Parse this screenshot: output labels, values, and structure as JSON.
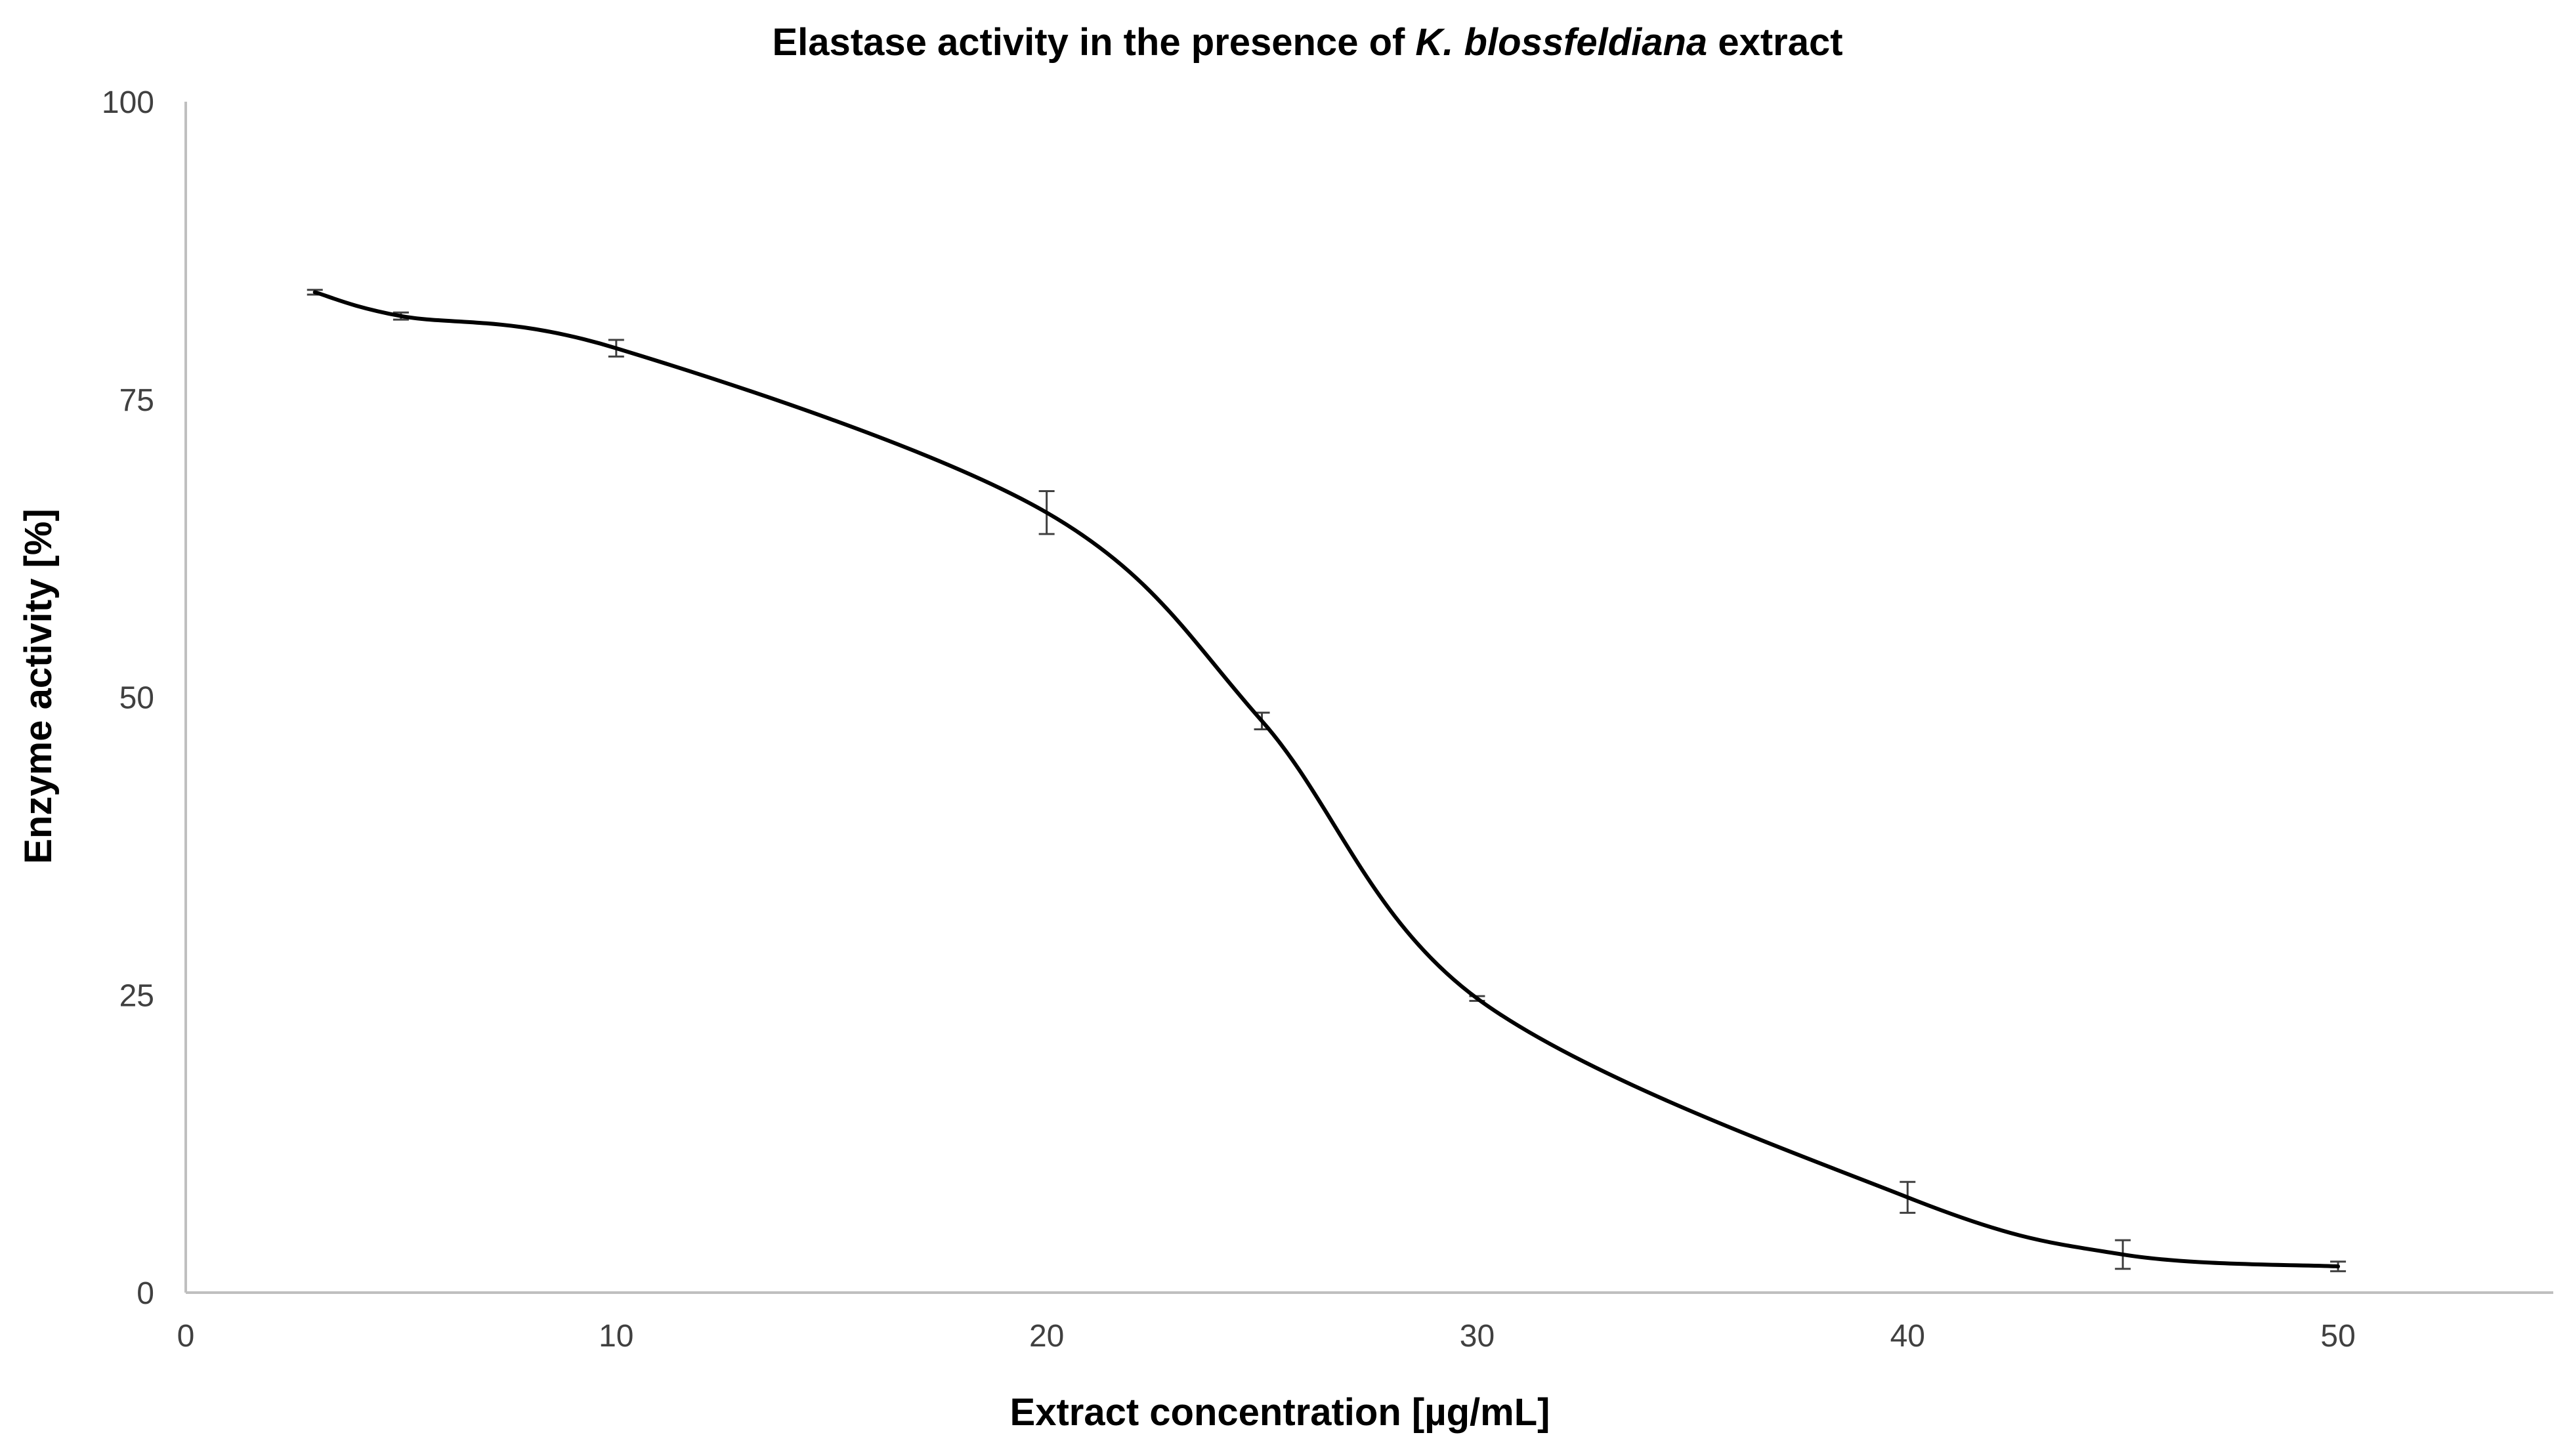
{
  "chart_data": {
    "type": "line",
    "title": {
      "part1": "Elastase activity in the presence of ",
      "part2": "K. blossfeldiana",
      "part3": " extract"
    },
    "xlabel": "Extract concentration [µg/mL]",
    "ylabel": "Enzyme activity [%]",
    "xlim": [
      0,
      55
    ],
    "ylim": [
      0,
      100
    ],
    "x_ticks": [
      0,
      10,
      20,
      30,
      40,
      50
    ],
    "y_ticks": [
      0,
      25,
      50,
      75,
      100
    ],
    "grid": false,
    "legend": "none",
    "line_color": "#000000",
    "errorbar_color": "#404040",
    "axis_color": "#bfbfbf",
    "series": [
      {
        "x": [
          3,
          5,
          10,
          20,
          25,
          30,
          40,
          45,
          50
        ],
        "y": [
          84.0,
          82.0,
          79.3,
          65.5,
          48.0,
          24.7,
          8.0,
          3.2,
          2.2
        ],
        "error": [
          0.2,
          0.3,
          0.7,
          1.8,
          0.7,
          0.2,
          1.3,
          1.2,
          0.4
        ]
      }
    ]
  }
}
